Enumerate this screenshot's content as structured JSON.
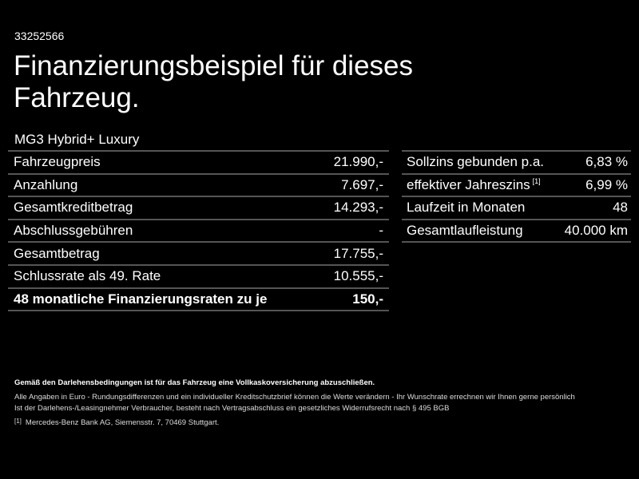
{
  "id_code": "33252566",
  "title": "Finanzierungsbeispiel für dieses Fahrzeug.",
  "model": "MG3 Hybrid+ Luxury",
  "left_table": [
    {
      "label": "Fahrzeugpreis",
      "value": "21.990,-",
      "bold": false
    },
    {
      "label": "Anzahlung",
      "value": "7.697,-",
      "bold": false
    },
    {
      "label": "Gesamtkreditbetrag",
      "value": "14.293,-",
      "bold": false
    },
    {
      "label": "Abschlussgebühren",
      "value": "-",
      "bold": false
    },
    {
      "label": "Gesamtbetrag",
      "value": "17.755,-",
      "bold": false
    },
    {
      "label": "Schlussrate als 49. Rate",
      "value": "10.555,-",
      "bold": false
    },
    {
      "label": "48 monatliche Finanzierungsraten zu je",
      "value": "150,-",
      "bold": true
    }
  ],
  "right_table": [
    {
      "label": "Sollzins gebunden p.a.",
      "sup": "",
      "value": "6,83 %"
    },
    {
      "label": "effektiver Jahreszins",
      "sup": "[1]",
      "value": "6,99 %"
    },
    {
      "label": "Laufzeit in Monaten",
      "sup": "",
      "value": "48"
    },
    {
      "label": "Gesamtlaufleistung",
      "sup": "",
      "value": "40.000 km"
    }
  ],
  "notes": {
    "bold": "Gemäß den Darlehensbedingungen ist für das Fahrzeug eine Vollkaskoversicherung abzuschließen.",
    "line1": "Alle Angaben in Euro - Rundungsdifferenzen und ein individueller Kreditschutzbrief können die Werte verändern - Ihr Wunschrate errechnen wir Ihnen gerne persönlich",
    "line2": "Ist der Darlehens-/Leasingnehmer Verbraucher, besteht nach Vertragsabschluss ein gesetzliches Widerrufsrecht nach § 495 BGB",
    "footnote_mark": "[1]",
    "footnote": "Mercedes-Benz Bank AG, Siemensstr. 7, 70469 Stuttgart."
  },
  "colors": {
    "background": "#000000",
    "text": "#ffffff",
    "divider": "#555555"
  }
}
